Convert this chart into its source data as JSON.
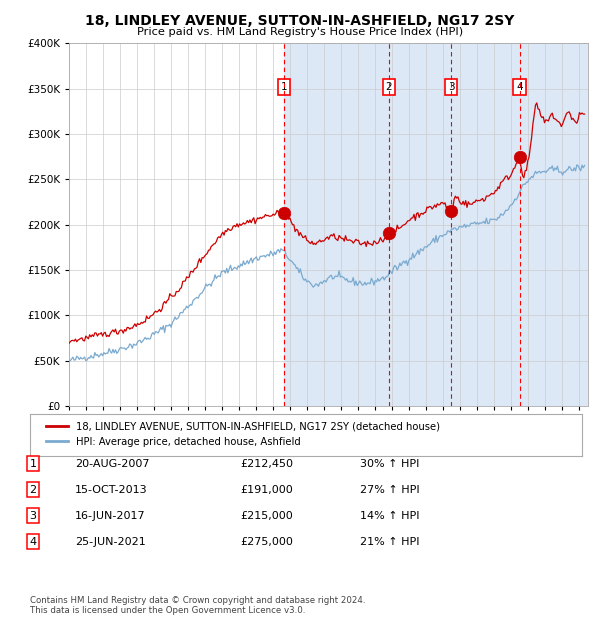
{
  "title": "18, LINDLEY AVENUE, SUTTON-IN-ASHFIELD, NG17 2SY",
  "subtitle": "Price paid vs. HM Land Registry's House Price Index (HPI)",
  "legend_property": "18, LINDLEY AVENUE, SUTTON-IN-ASHFIELD, NG17 2SY (detached house)",
  "legend_hpi": "HPI: Average price, detached house, Ashfield",
  "footer": "Contains HM Land Registry data © Crown copyright and database right 2024.\nThis data is licensed under the Open Government Licence v3.0.",
  "transactions": [
    {
      "num": 1,
      "date": "20-AUG-2007",
      "price": 212450,
      "x_year": 2007.64,
      "pct": "30%",
      "dir": "↑"
    },
    {
      "num": 2,
      "date": "15-OCT-2013",
      "price": 191000,
      "x_year": 2013.79,
      "pct": "27%",
      "dir": "↑"
    },
    {
      "num": 3,
      "date": "16-JUN-2017",
      "price": 215000,
      "x_year": 2017.46,
      "pct": "14%",
      "dir": "↑"
    },
    {
      "num": 4,
      "date": "25-JUN-2021",
      "price": 275000,
      "x_year": 2021.48,
      "pct": "21%",
      "dir": "↑"
    }
  ],
  "property_color": "#cc0000",
  "hpi_color": "#7aaad0",
  "shade_color": "#dce8f5",
  "grid_color": "#cccccc",
  "ylim": [
    0,
    400000
  ],
  "xlim_start": 1995.0,
  "xlim_end": 2025.5,
  "shade_start": 2007.64
}
